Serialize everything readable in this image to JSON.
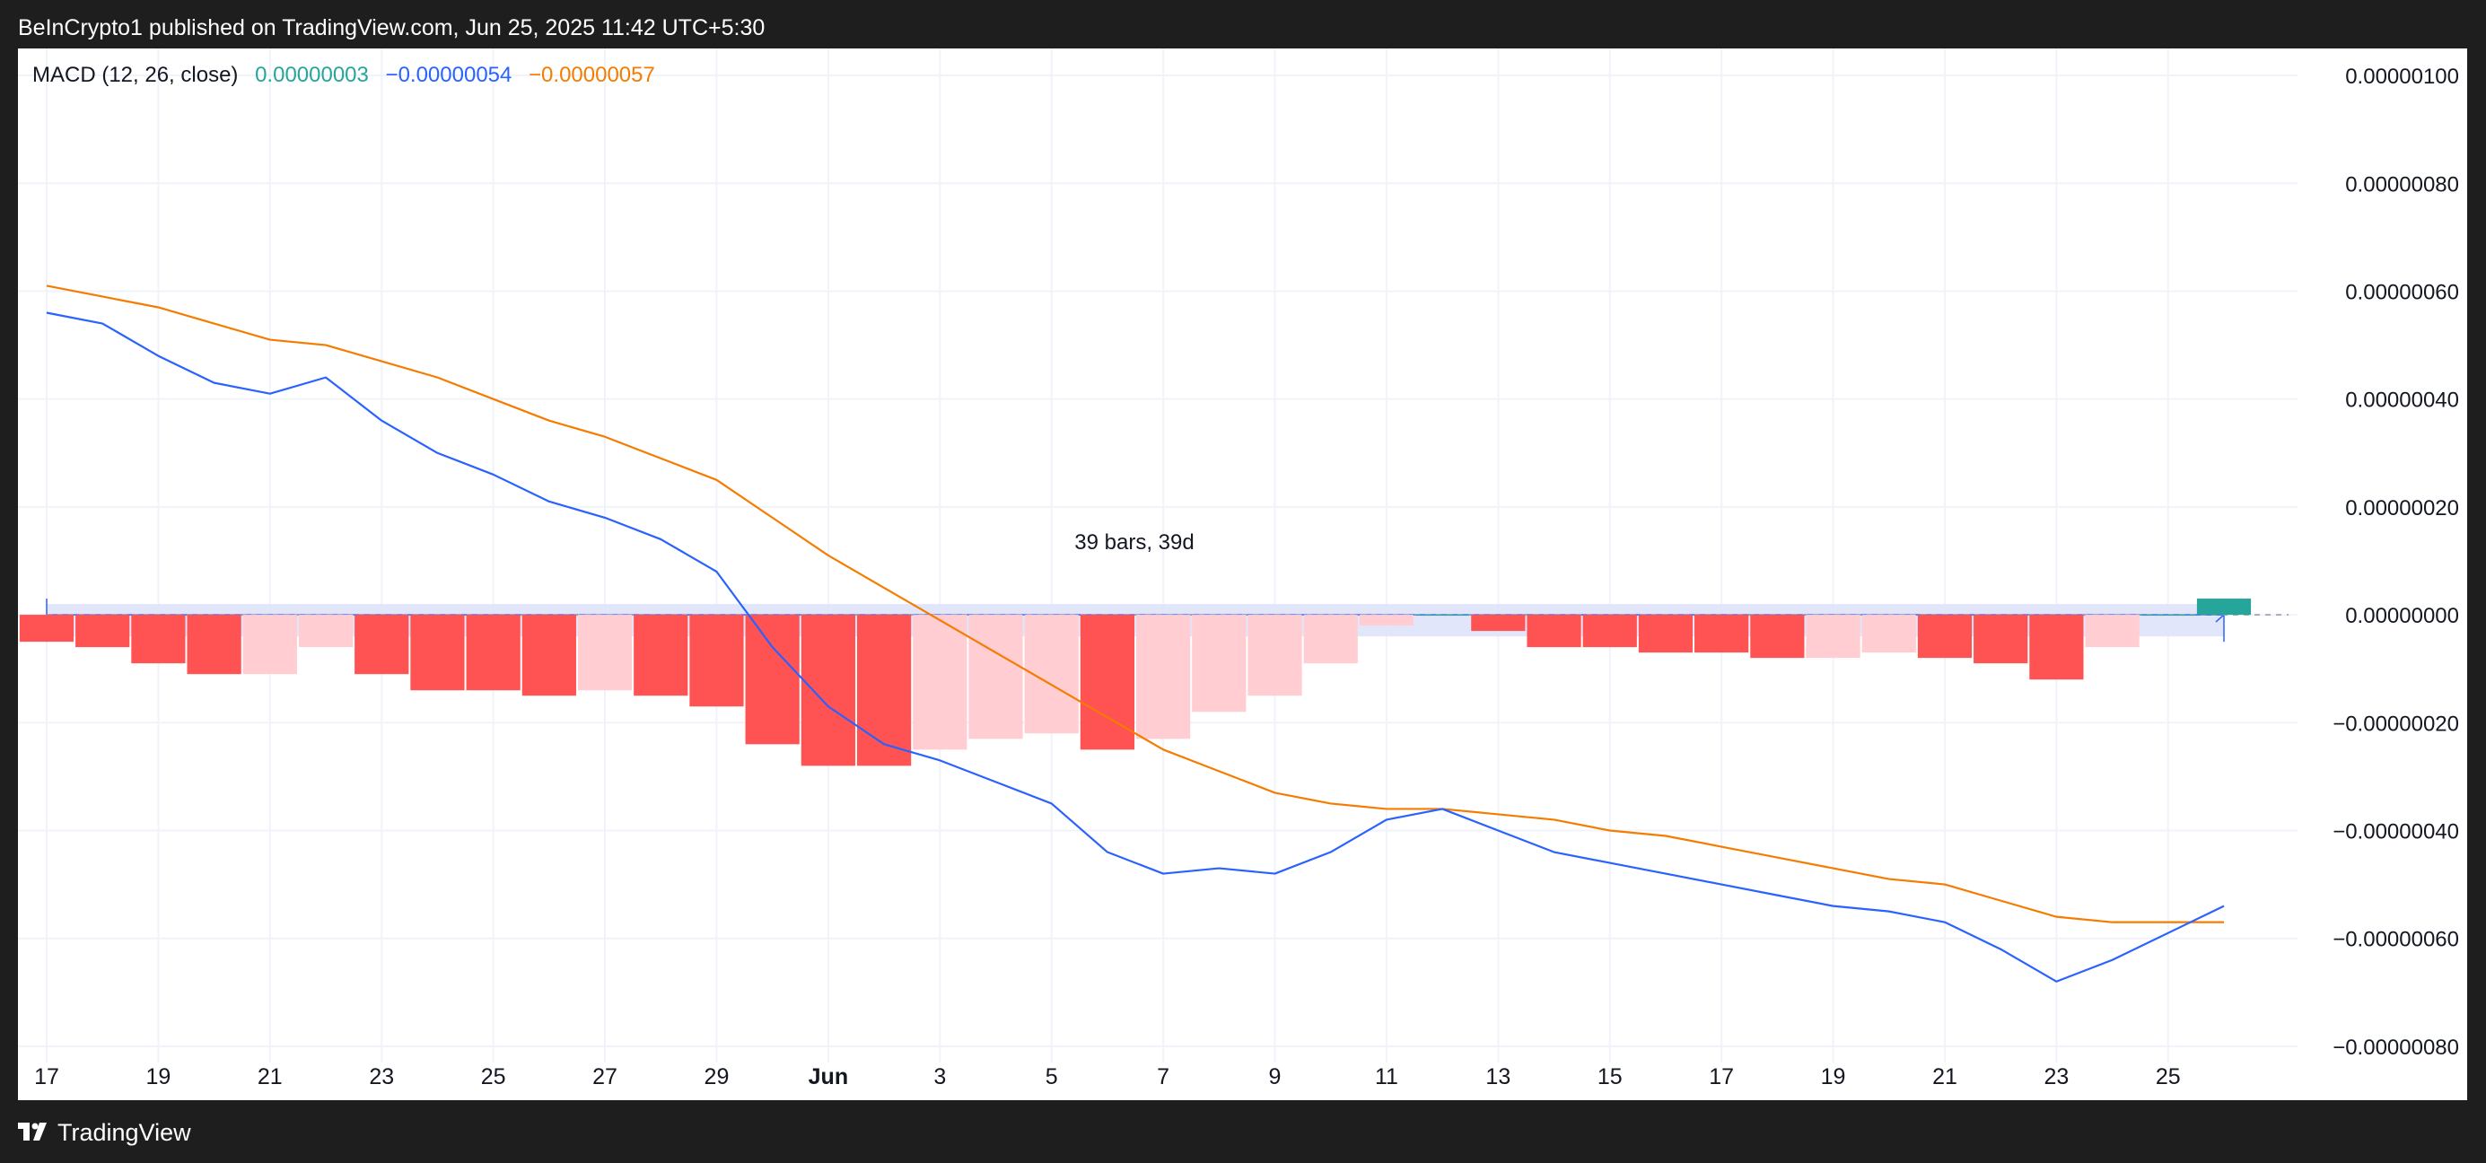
{
  "header": {
    "text": "BeInCrypto1 published on TradingView.com, Jun 25, 2025 11:42 UTC+5:30"
  },
  "legend": {
    "name": "MACD (12, 26, close)",
    "hist_value": "0.00000003",
    "macd_value": "−0.00000054",
    "signal_value": "−0.00000057"
  },
  "footer": {
    "brand": "TradingView"
  },
  "colors": {
    "macd": "#2962ff",
    "signal": "#f57c00",
    "hist_neg_strong": "#ff5252",
    "hist_neg_weak": "#ffcdd2",
    "hist_pos_strong": "#26a69a",
    "range_fill": "#dfe3fb",
    "range_stroke": "#2962ff"
  },
  "chart_data": {
    "type": "line",
    "indicator": "MACD",
    "x": [
      "May 17",
      "May 18",
      "May 19",
      "May 20",
      "May 21",
      "May 22",
      "May 23",
      "May 24",
      "May 25",
      "May 26",
      "May 27",
      "May 28",
      "May 29",
      "May 30",
      "May 31",
      "Jun 1",
      "Jun 2",
      "Jun 3",
      "Jun 4",
      "Jun 5",
      "Jun 6",
      "Jun 7",
      "Jun 8",
      "Jun 9",
      "Jun 10",
      "Jun 11",
      "Jun 12",
      "Jun 13",
      "Jun 14",
      "Jun 15",
      "Jun 16",
      "Jun 17",
      "Jun 18",
      "Jun 19",
      "Jun 20",
      "Jun 21",
      "Jun 22",
      "Jun 23",
      "Jun 24",
      "Jun 25"
    ],
    "x_tick_labels": [
      "17",
      "19",
      "21",
      "23",
      "25",
      "27",
      "29",
      "Jun",
      "3",
      "5",
      "7",
      "9",
      "11",
      "13",
      "15",
      "17",
      "19",
      "21",
      "23",
      "25"
    ],
    "y_tick_labels": [
      "0.00000100",
      "0.00000080",
      "0.00000060",
      "0.00000040",
      "0.00000020",
      "0.00000000",
      "−0.00000020",
      "−0.00000040",
      "−0.00000060",
      "−0.00000080"
    ],
    "ylim": [
      -9e-07,
      1.05e-06
    ],
    "grid": true,
    "series": [
      {
        "values": [
          5.6e-07,
          5.4e-07,
          4.8e-07,
          4.3e-07,
          4.1e-07,
          4.4e-07,
          3.6e-07,
          3e-07,
          2.6e-07,
          2.1e-07,
          1.8e-07,
          1.4e-07,
          8e-08,
          -6e-08,
          -1.7e-07,
          -2.4e-07,
          -2.7e-07,
          -3.1e-07,
          -3.5e-07,
          -4.4e-07,
          -4.8e-07,
          -4.7e-07,
          -4.8e-07,
          -4.4e-07,
          -3.8e-07,
          -3.6e-07,
          -4e-07,
          -4.4e-07,
          -4.6e-07,
          -4.8e-07,
          -5e-07,
          -5.2e-07,
          -5.4e-07,
          -5.5e-07,
          -5.7e-07,
          -6.2e-07,
          -6.8e-07,
          -6.4e-07,
          -5.9e-07,
          -5.4e-07
        ]
      },
      {
        "values": [
          6.1e-07,
          5.9e-07,
          5.7e-07,
          5.4e-07,
          5.1e-07,
          5e-07,
          4.7e-07,
          4.4e-07,
          4e-07,
          3.6e-07,
          3.3e-07,
          2.9e-07,
          2.5e-07,
          1.8e-07,
          1.1e-07,
          5e-08,
          -1e-08,
          -7e-08,
          -1.3e-07,
          -1.9e-07,
          -2.5e-07,
          -2.9e-07,
          -3.3e-07,
          -3.5e-07,
          -3.6e-07,
          -3.6e-07,
          -3.7e-07,
          -3.8e-07,
          -4e-07,
          -4.1e-07,
          -4.3e-07,
          -4.5e-07,
          -4.7e-07,
          -4.9e-07,
          -5e-07,
          -5.3e-07,
          -5.6e-07,
          -5.7e-07,
          -5.7e-07,
          -5.7e-07
        ]
      },
      {
        "values": [
          -5e-08,
          -6e-08,
          -9e-08,
          -1.1e-07,
          -1.1e-07,
          -6e-08,
          -1.1e-07,
          -1.4e-07,
          -1.4e-07,
          -1.5e-07,
          -1.4e-07,
          -1.5e-07,
          -1.7e-07,
          -2.4e-07,
          -2.8e-07,
          -2.8e-07,
          -2.5e-07,
          -2.3e-07,
          -2.2e-07,
          -2.5e-07,
          -2.3e-07,
          -1.8e-07,
          -1.5e-07,
          -9e-08,
          -2e-08,
          0,
          -3e-08,
          -6e-08,
          -6e-08,
          -7e-08,
          -7e-08,
          -8e-08,
          -8e-08,
          -7e-08,
          -8e-08,
          -9e-08,
          -1.2e-07,
          -6e-08,
          0,
          3e-08
        ]
      }
    ],
    "hist_shade": [
      "strong",
      "strong",
      "strong",
      "strong",
      "weak",
      "weak",
      "strong",
      "strong",
      "strong",
      "strong",
      "weak",
      "strong",
      "strong",
      "strong",
      "strong",
      "strong",
      "weak",
      "weak",
      "weak",
      "strong",
      "weak",
      "weak",
      "weak",
      "weak",
      "weak",
      "weak",
      "strong",
      "strong",
      "strong",
      "strong",
      "strong",
      "strong",
      "weak",
      "weak",
      "strong",
      "strong",
      "strong",
      "weak",
      "weak",
      "strong"
    ],
    "annotation": {
      "text": "39 bars, 39d"
    }
  }
}
